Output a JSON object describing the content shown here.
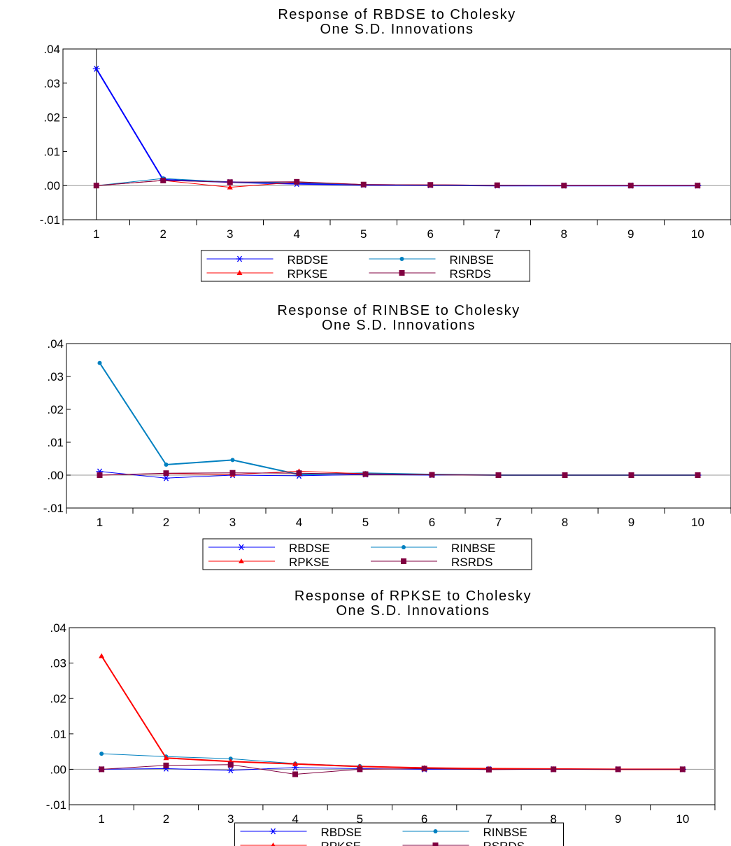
{
  "chart_data": [
    {
      "type": "line",
      "title": "Response of RBDSE to Cholesky",
      "subtitle": "One S.D. Innovations",
      "xlabel": "",
      "ylabel": "",
      "categories": [
        "1",
        "2",
        "3",
        "4",
        "5",
        "6",
        "7",
        "8",
        "9",
        "10"
      ],
      "ylim": [
        -0.01,
        0.04
      ],
      "yticks": [
        ".04",
        ".03",
        ".02",
        ".01",
        ".00",
        "-.01"
      ],
      "grid": false,
      "legend_position": "bottom",
      "series": [
        {
          "name": "RBDSE",
          "color": "#0000ff",
          "marker": "asterisk",
          "values": [
            0.0342,
            0.0017,
            0.001,
            0.0005,
            0.0002,
            0.0001,
            0.0,
            0.0,
            0.0,
            0.0
          ]
        },
        {
          "name": "RINBSE",
          "color": "#0080c0",
          "marker": "circle",
          "values": [
            0.0,
            0.0021,
            0.001,
            0.0008,
            0.0003,
            0.0001,
            0.0,
            0.0,
            0.0,
            0.0
          ]
        },
        {
          "name": "RPKSE",
          "color": "#ff0000",
          "marker": "triangle",
          "values": [
            0.0,
            0.0015,
            -0.0005,
            0.001,
            0.0003,
            0.0002,
            0.0001,
            0.0,
            0.0,
            0.0
          ]
        },
        {
          "name": "RSRDS",
          "color": "#800040",
          "marker": "square",
          "values": [
            0.0,
            0.0015,
            0.001,
            0.0011,
            0.0003,
            0.0002,
            0.0001,
            0.0,
            0.0,
            0.0
          ]
        }
      ]
    },
    {
      "type": "line",
      "title": "Response of RINBSE to Cholesky",
      "subtitle": "One S.D. Innovations",
      "xlabel": "",
      "ylabel": "",
      "categories": [
        "1",
        "2",
        "3",
        "4",
        "5",
        "6",
        "7",
        "8",
        "9",
        "10"
      ],
      "ylim": [
        -0.01,
        0.04
      ],
      "yticks": [
        ".04",
        ".03",
        ".02",
        ".01",
        ".00",
        "-.01"
      ],
      "grid": false,
      "legend_position": "bottom",
      "series": [
        {
          "name": "RBDSE",
          "color": "#0000ff",
          "marker": "asterisk",
          "values": [
            0.0011,
            -0.0009,
            0.0,
            -0.0002,
            0.0002,
            0.0,
            0.0,
            0.0,
            0.0,
            0.0
          ]
        },
        {
          "name": "RINBSE",
          "color": "#0080c0",
          "marker": "circle",
          "values": [
            0.0341,
            0.0032,
            0.0046,
            0.0002,
            0.0006,
            0.0002,
            0.0,
            0.0,
            0.0,
            0.0
          ]
        },
        {
          "name": "RPKSE",
          "color": "#ff0000",
          "marker": "triangle",
          "values": [
            0.0,
            0.0005,
            0.0002,
            0.0012,
            0.0004,
            0.0001,
            0.0,
            0.0,
            0.0,
            0.0
          ]
        },
        {
          "name": "RSRDS",
          "color": "#800040",
          "marker": "square",
          "values": [
            0.0,
            0.0006,
            0.0007,
            0.0006,
            0.0003,
            0.0001,
            0.0,
            0.0,
            0.0,
            0.0
          ]
        }
      ]
    },
    {
      "type": "line",
      "title": "Response of RPKSE to Cholesky",
      "subtitle": "One S.D. Innovations",
      "xlabel": "",
      "ylabel": "",
      "categories": [
        "1",
        "2",
        "3",
        "4",
        "5",
        "6",
        "7",
        "8",
        "9",
        "10"
      ],
      "ylim": [
        -0.01,
        0.04
      ],
      "yticks": [
        ".04",
        ".03",
        ".02",
        ".01",
        ".00",
        "-.01"
      ],
      "grid": false,
      "legend_position": "bottom",
      "series": [
        {
          "name": "RBDSE",
          "color": "#0000ff",
          "marker": "asterisk",
          "values": [
            0.0,
            0.0002,
            -0.0003,
            0.0005,
            0.0002,
            0.0,
            0.0,
            0.0,
            0.0,
            0.0
          ]
        },
        {
          "name": "RINBSE",
          "color": "#0080c0",
          "marker": "circle",
          "values": [
            0.0044,
            0.0036,
            0.003,
            0.0016,
            0.0009,
            0.0004,
            0.0002,
            0.0001,
            0.0,
            0.0
          ]
        },
        {
          "name": "RPKSE",
          "color": "#ff0000",
          "marker": "triangle",
          "values": [
            0.032,
            0.0032,
            0.0022,
            0.0015,
            0.0008,
            0.0004,
            0.0002,
            0.0001,
            0.0,
            0.0
          ]
        },
        {
          "name": "RSRDS",
          "color": "#800040",
          "marker": "square",
          "values": [
            0.0,
            0.0011,
            0.0013,
            -0.0014,
            0.0,
            0.0002,
            -0.0001,
            0.0,
            0.0,
            0.0
          ]
        }
      ]
    }
  ]
}
